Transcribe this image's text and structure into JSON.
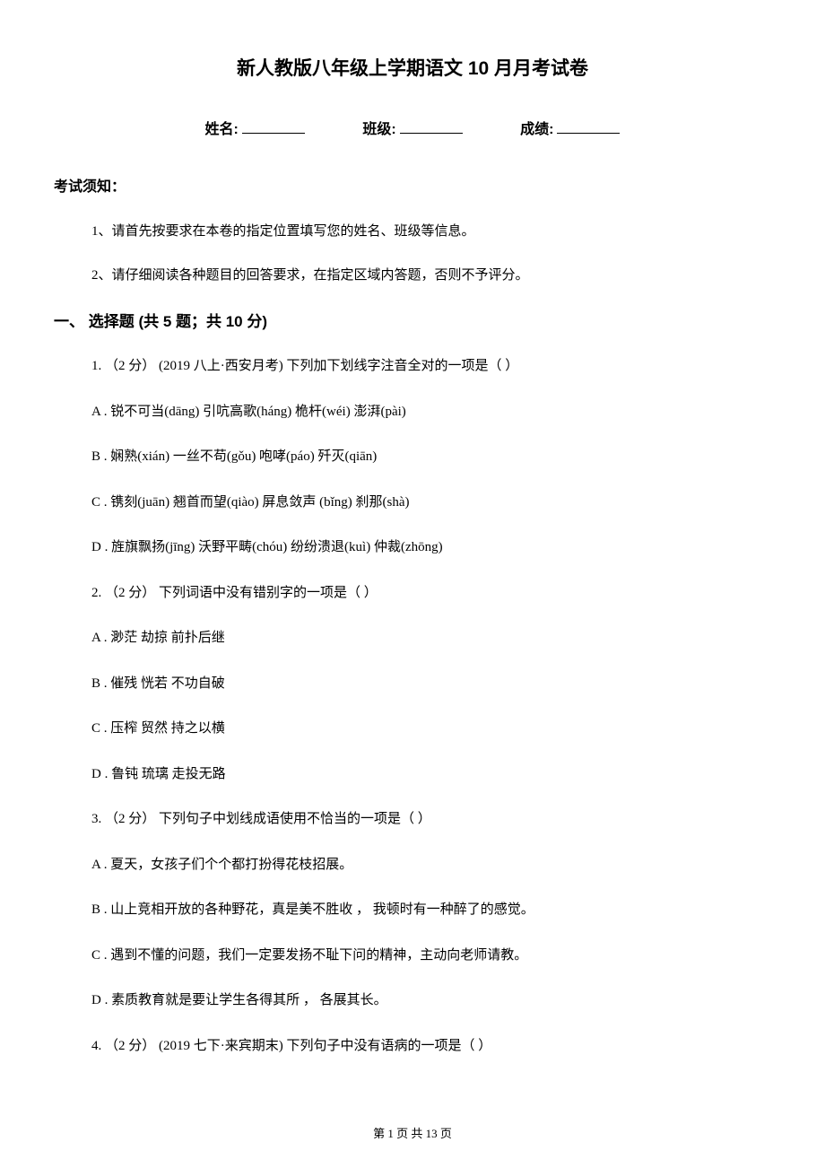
{
  "title": "新人教版八年级上学期语文 10 月月考试卷",
  "info_line": {
    "name_label": "姓名:",
    "class_label": "班级:",
    "score_label": "成绩:"
  },
  "instructions_title": "考试须知：",
  "instructions": [
    "1、请首先按要求在本卷的指定位置填写您的姓名、班级等信息。",
    "2、请仔细阅读各种题目的回答要求，在指定区域内答题，否则不予评分。"
  ],
  "section_title": "一、 选择题 (共 5 题；共 10 分)",
  "q1": {
    "stem": "1. （2 分） (2019 八上·西安月考) 下列加下划线字注音全对的一项是（    ）",
    "a": "A . 锐不可当(dāng)    引吭高歌(háng)      桅杆(wéi)                澎湃(pài)",
    "b": "B . 娴熟(xián)            一丝不苟(gǒu)        咆哮(páo)                歼灭(qiān)",
    "c": "C . 镌刻(juān)            翘首而望(qiào)      屏息敛声 (bǐng)    刹那(shà)",
    "d": "D . 旌旗飘扬(jīng)    沃野平畴(chóu)      纷纷溃退(kuì)       仲裁(zhōng)"
  },
  "q2": {
    "stem": "2. （2 分） 下列词语中没有错别字的一项是（    ）",
    "a": "A . 渺茫        劫掠        前扑后继",
    "b": "B . 催残        恍若        不功自破",
    "c": "C . 压榨        贸然        持之以横",
    "d": "D . 鲁钝        琉璃        走投无路"
  },
  "q3": {
    "stem": "3. （2 分） 下列句子中划线成语使用不恰当的一项是（    ）",
    "a": "A . 夏天，女孩子们个个都打扮得花枝招展。",
    "b": "B . 山上竞相开放的各种野花，真是美不胜收 ，  我顿时有一种醉了的感觉。",
    "c": "C . 遇到不懂的问题，我们一定要发扬不耻下问的精神，主动向老师请教。",
    "d": "D . 素质教育就是要让学生各得其所 ，  各展其长。"
  },
  "q4": {
    "stem": "4. （2 分） (2019 七下·来宾期末) 下列句子中没有语病的一项是（    ）"
  },
  "footer": "第 1 页 共 13 页"
}
